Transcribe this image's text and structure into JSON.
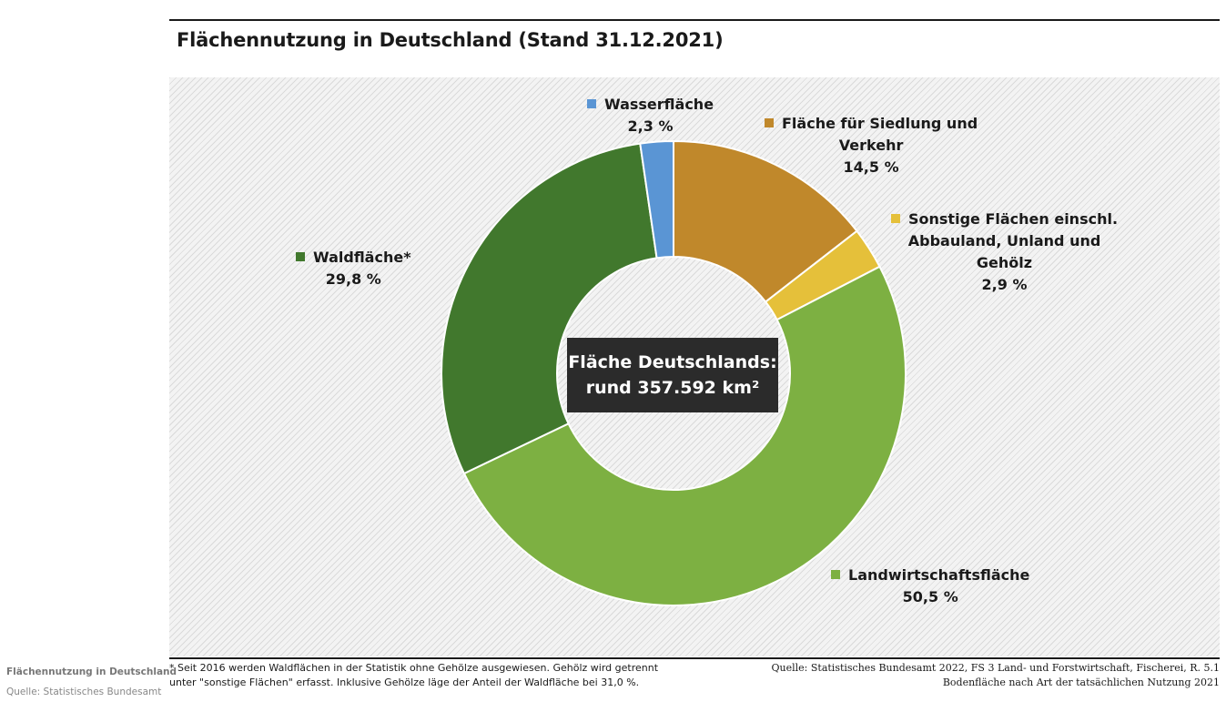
{
  "title": "Flächennutzung in Deutschland (Stand 31.12.2021)",
  "center": {
    "line1": "Fläche Deutschlands:",
    "line2": "rund 357.592 km²"
  },
  "chart_data": {
    "type": "pie",
    "subtype": "donut",
    "title": "Flächennutzung in Deutschland (Stand 31.12.2021)",
    "unit": "%",
    "series": [
      {
        "name": "Fläche für Siedlung und Verkehr",
        "label_lines": [
          "Fläche für Siedlung und",
          "Verkehr"
        ],
        "value": 14.5,
        "value_label": "14,5 %",
        "color": "#c0882b"
      },
      {
        "name": "Sonstige Flächen einschl. Abbauland, Unland und Gehölz",
        "label_lines": [
          "Sonstige Flächen einschl.",
          "Abbauland, Unland und",
          "Gehölz"
        ],
        "value": 2.9,
        "value_label": "2,9 %",
        "color": "#e5c03a"
      },
      {
        "name": "Landwirtschaftsfläche",
        "label_lines": [
          "Landwirtschaftsfläche"
        ],
        "value": 50.5,
        "value_label": "50,5 %",
        "color": "#7db042"
      },
      {
        "name": "Waldfläche*",
        "label_lines": [
          "Waldfläche*"
        ],
        "value": 29.8,
        "value_label": "29,8 %",
        "color": "#41782d"
      },
      {
        "name": "Wasserfläche",
        "label_lines": [
          "Wasserfläche"
        ],
        "value": 2.3,
        "value_label": "2,3 %",
        "color": "#5a95d4"
      }
    ]
  },
  "footnote": {
    "line1": "* Seit 2016 werden Waldflächen in der Statistik ohne Gehölze ausgewiesen. Gehölz wird getrennt",
    "line2": "unter \"sonstige Flächen\" erfasst. Inklusive Gehölze läge der Anteil der Waldfläche bei 31,0 %."
  },
  "source": {
    "line1": "Quelle: Statistisches Bundesamt 2022, FS 3 Land- und Forstwirtschaft, Fischerei, R. 5.1",
    "line2": "Bodenfläche nach Art der tatsächlichen Nutzung 2021"
  },
  "caption": {
    "title": "Flächennutzung in Deutschland",
    "source": "Quelle: Statistisches Bundesamt"
  }
}
